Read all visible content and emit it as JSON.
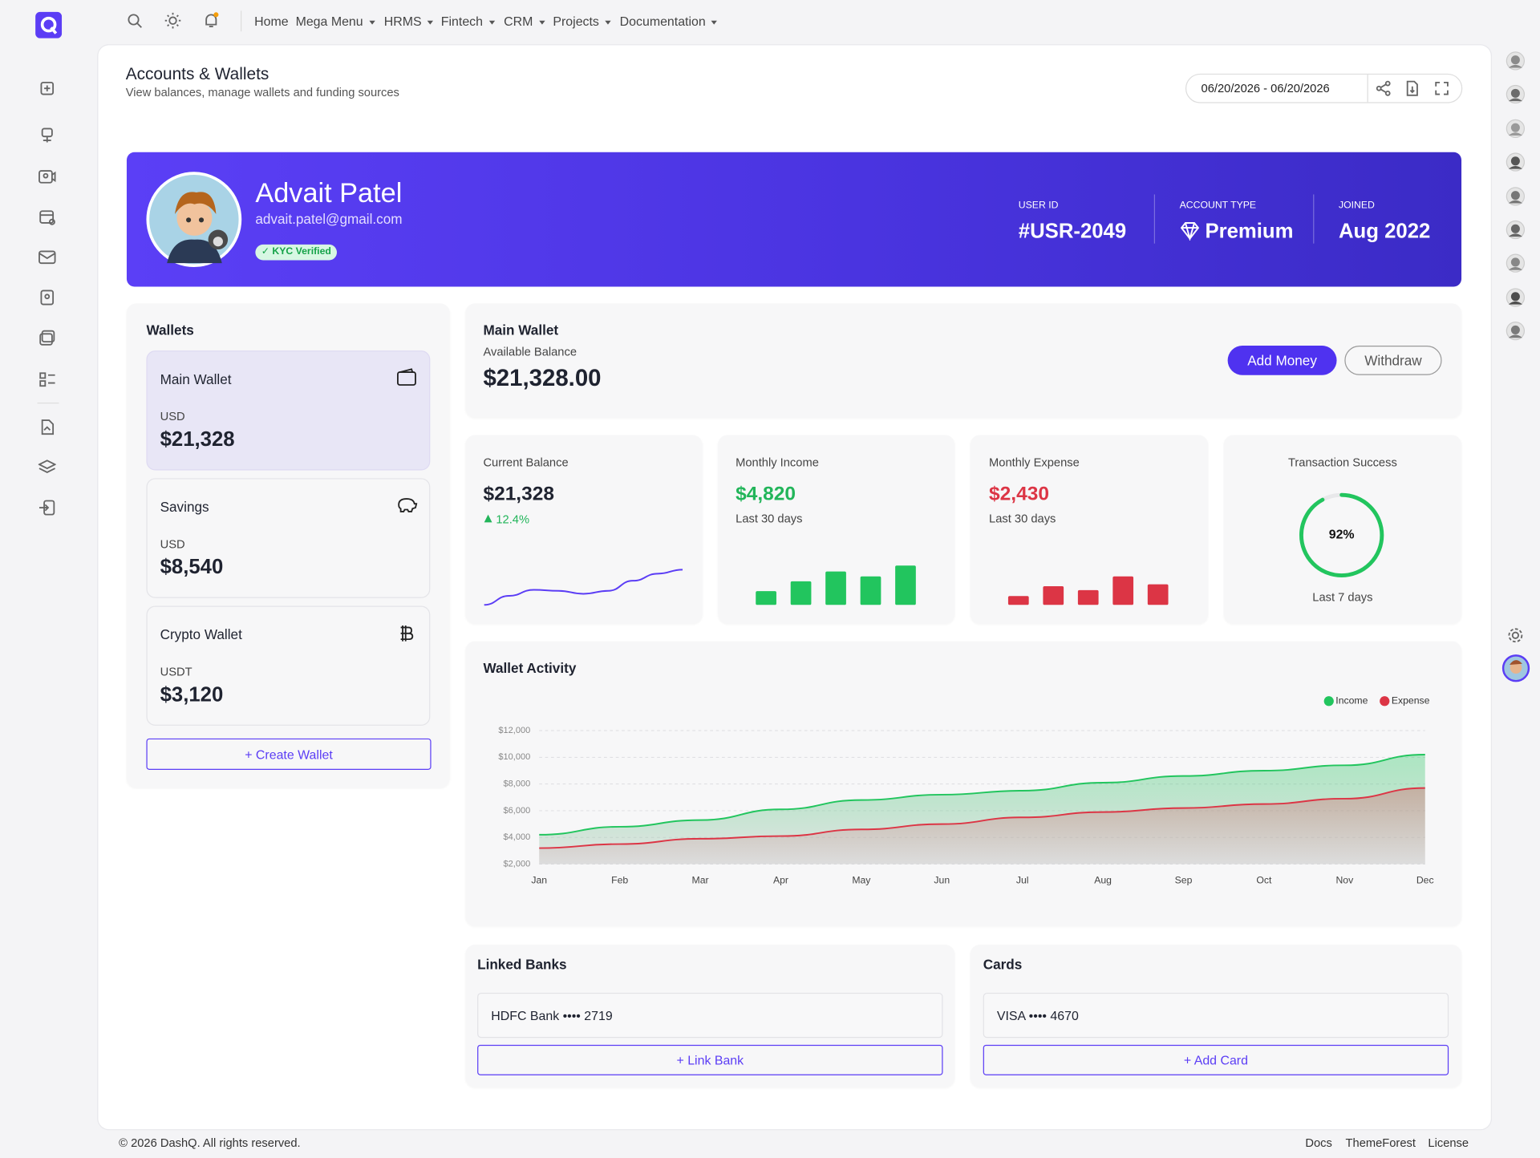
{
  "nav": [
    {
      "label": "Home",
      "dropdown": false
    },
    {
      "label": "Mega Menu",
      "dropdown": true
    },
    {
      "label": "HRMS",
      "dropdown": true
    },
    {
      "label": "Fintech",
      "dropdown": true
    },
    {
      "label": "CRM",
      "dropdown": true
    },
    {
      "label": "Projects",
      "dropdown": true
    },
    {
      "label": "Documentation",
      "dropdown": true
    }
  ],
  "header": {
    "title": "Accounts & Wallets",
    "subtitle": "View balances, manage wallets and funding sources",
    "date_range": "06/20/2026 - 06/20/2026"
  },
  "profile": {
    "name": "Advait Patel",
    "email": "advait.patel@gmail.com",
    "badge": "✓ KYC Verified",
    "stats": [
      {
        "label": "USER ID",
        "value": "#USR-2049"
      },
      {
        "label": "ACCOUNT TYPE",
        "value": "Premium"
      },
      {
        "label": "JOINED",
        "value": "Aug 2022"
      }
    ]
  },
  "wallets": {
    "title": "Wallets",
    "items": [
      {
        "name": "Main Wallet",
        "currency": "USD",
        "balance": "$21,328",
        "active": true
      },
      {
        "name": "Savings",
        "currency": "USD",
        "balance": "$8,540",
        "active": false
      },
      {
        "name": "Crypto Wallet",
        "currency": "USDT",
        "balance": "$3,120",
        "active": false
      }
    ],
    "action": "+ Create Wallet"
  },
  "main_wallet": {
    "title": "Main Wallet",
    "label": "Available Balance",
    "balance": "$21,328.00",
    "actions": [
      "Add Money",
      "Withdraw"
    ]
  },
  "stat_cards": [
    {
      "label": "Current Balance",
      "value": "$21,328",
      "change": "12.4%",
      "chart": {
        "type": "line",
        "color": "#5b3df5",
        "values": [
          0,
          9,
          15,
          14,
          11,
          14,
          24,
          31,
          35
        ],
        "ylim": [
          0,
          40
        ]
      }
    },
    {
      "label": "Monthly Income",
      "value": "$4,820",
      "note": "Last 30 days",
      "color": "#22b55a",
      "chart": {
        "type": "bar",
        "color": "#22c55e",
        "values": [
          14,
          24,
          34,
          29,
          40
        ],
        "ylim": [
          0,
          40
        ]
      }
    },
    {
      "label": "Monthly Expense",
      "value": "$2,430",
      "note": "Last 30 days",
      "color": "#dc3545",
      "chart": {
        "type": "bar",
        "color": "#dc3545",
        "values": [
          9,
          19,
          15,
          29,
          21
        ],
        "ylim": [
          0,
          40
        ]
      }
    },
    {
      "label": "Transaction Success",
      "note": "Last 7 days",
      "chart": {
        "type": "donut",
        "color": "#22c55e",
        "values": [
          92
        ],
        "value_labels": [
          "92%"
        ],
        "ylim": [
          0,
          100
        ]
      }
    }
  ],
  "chart_data": {
    "type": "area",
    "title": "Wallet Activity",
    "categories": [
      "Jan",
      "Feb",
      "Mar",
      "Apr",
      "May",
      "Jun",
      "Jul",
      "Aug",
      "Sep",
      "Oct",
      "Nov",
      "Dec"
    ],
    "series": [
      {
        "name": "Income",
        "color": "#22c55e",
        "values": [
          4200,
          4800,
          5300,
          6100,
          6800,
          7200,
          7500,
          8100,
          8600,
          9000,
          9400,
          10200
        ]
      },
      {
        "name": "Expense",
        "color": "#dc3545",
        "values": [
          3200,
          3500,
          3900,
          4100,
          4600,
          5000,
          5500,
          5900,
          6200,
          6500,
          6900,
          7700
        ]
      }
    ],
    "ylim": [
      2000,
      12000
    ],
    "yticks": [
      {
        "value": 2000,
        "label": "$2,000"
      },
      {
        "value": 4000,
        "label": "$4,000"
      },
      {
        "value": 6000,
        "label": "$6,000"
      },
      {
        "value": 8000,
        "label": "$8,000"
      },
      {
        "value": 10000,
        "label": "$10,000"
      },
      {
        "value": 12000,
        "label": "$12,000"
      }
    ],
    "grid": true,
    "legend": "top-right"
  },
  "linked_banks": {
    "title": "Linked Banks",
    "items": [
      "HDFC Bank •••• 2719"
    ],
    "action": "+ Link Bank"
  },
  "cards": {
    "title": "Cards",
    "items": [
      "VISA •••• 4670"
    ],
    "action": "+ Add Card"
  },
  "footer": {
    "copyright": "© 2026 DashQ. All rights reserved.",
    "links": [
      "Docs",
      "ThemeForest",
      "License"
    ]
  }
}
